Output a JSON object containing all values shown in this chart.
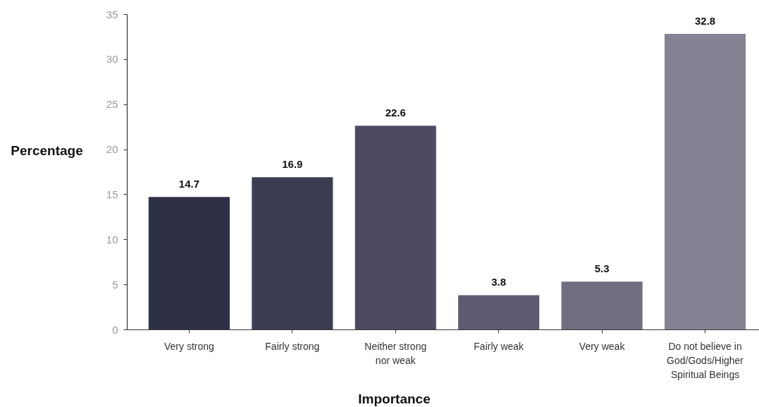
{
  "chart_data": {
    "type": "bar",
    "xlabel": "Importance",
    "ylabel": "Percentage",
    "categories": [
      "Very strong",
      "Fairly strong",
      "Neither strong nor weak",
      "Fairly weak",
      "Very weak",
      "Do not believe in God/Gods/Higher Spiritual Beings"
    ],
    "values": [
      14.7,
      16.9,
      22.6,
      3.8,
      5.3,
      32.8
    ],
    "colors": [
      "#2e3047",
      "#3c3d53",
      "#4d4b62",
      "#5e5c72",
      "#726e82",
      "#878293"
    ],
    "ylim": [
      0,
      35
    ],
    "yticks": [
      0,
      5,
      10,
      15,
      20,
      25,
      30,
      35
    ],
    "grid": false,
    "data_labels": true
  }
}
